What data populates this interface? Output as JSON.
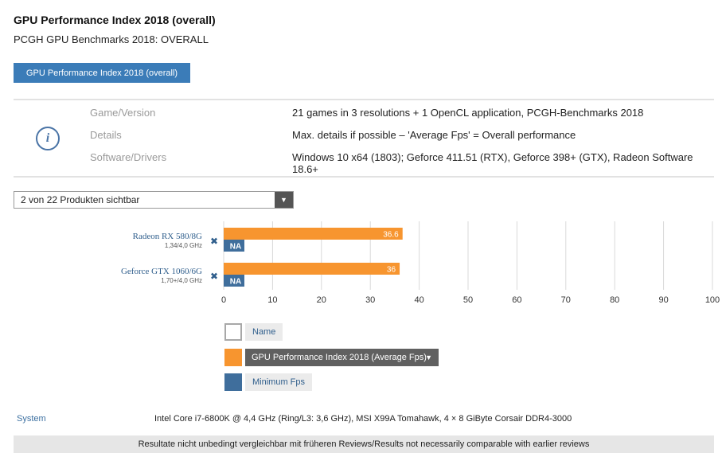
{
  "header": {
    "title": "GPU Performance Index 2018 (overall)",
    "subtitle": "PCGH GPU Benchmarks 2018: OVERALL",
    "button_label": "GPU Performance Index 2018 (overall)"
  },
  "info": {
    "icon": "i",
    "rows": [
      {
        "label": "Game/Version",
        "value": "21 games in 3 resolutions + 1 OpenCL application, PCGH-Benchmarks 2018"
      },
      {
        "label": "Details",
        "value": "Max. details if possible – 'Average Fps' = Overall performance"
      },
      {
        "label": "Software/Drivers",
        "value": "Windows 10 x64 (1803); Geforce 411.51 (RTX), Geforce 398+ (GTX), Radeon Software 18.6+"
      }
    ]
  },
  "filter": {
    "selected": "2 von 22 Produkten sichtbar"
  },
  "chart_data": {
    "type": "bar",
    "orientation": "horizontal",
    "categories": [
      "Radeon RX 580/8G",
      "Geforce GTX 1060/6G"
    ],
    "category_sublabels": [
      "1,34/4,0 GHz",
      "1,70+/4,0 GHz"
    ],
    "series": [
      {
        "name": "GPU Performance Index 2018 (Average Fps)",
        "values": [
          36.6,
          36.0
        ],
        "color": "#f7952f"
      },
      {
        "name": "Minimum Fps",
        "values": [
          "NA",
          "NA"
        ],
        "color": "#3f6e9c"
      }
    ],
    "xlim": [
      0,
      100
    ],
    "xticks": [
      "0",
      "10",
      "20",
      "30",
      "40",
      "50",
      "60",
      "70",
      "80",
      "90",
      "100"
    ],
    "grid": true,
    "remove_icon": "✖"
  },
  "legend": {
    "name_label": "Name",
    "avg_label": "GPU Performance Index 2018 (Average Fps)",
    "min_label": "Minimum Fps",
    "colors": {
      "name": "#ffffff",
      "avg": "#f7952f",
      "min": "#3f6e9c"
    }
  },
  "system": {
    "label": "System",
    "value": "Intel Core i7-6800K @ 4,4 GHz (Ring/L3: 3,6 GHz), MSI X99A Tomahawk, 4 × 8 GiByte Corsair DDR4-3000"
  },
  "footer": {
    "text": "Resultate nicht unbedingt vergleichbar mit früheren Reviews/Results not necessarily comparable with earlier reviews"
  }
}
